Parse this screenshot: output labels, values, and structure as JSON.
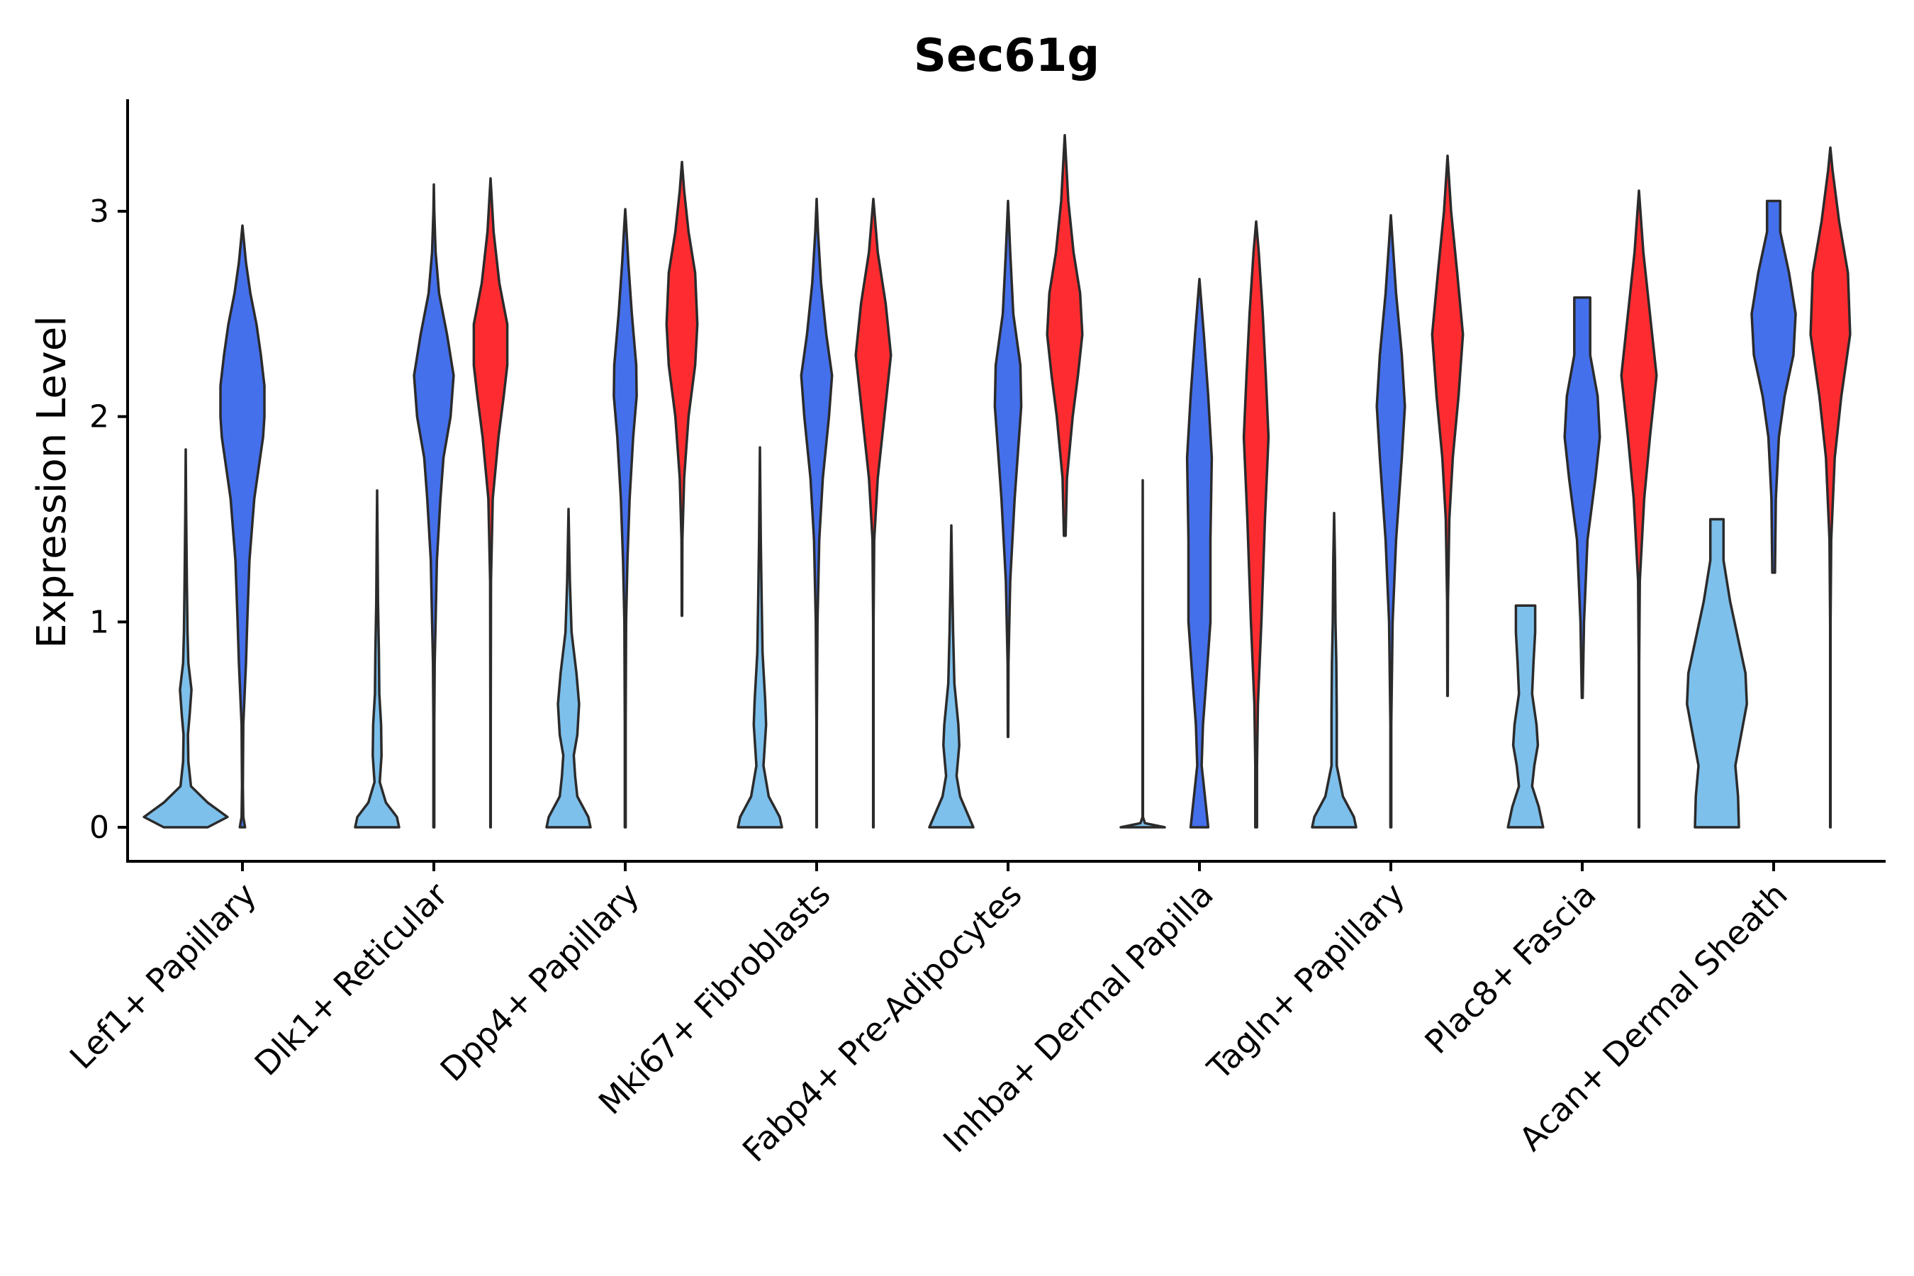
{
  "chart_data": {
    "type": "violin",
    "title": "Sec61g",
    "xlabel": "",
    "ylabel": "Expression Level",
    "ylim": [
      -0.17,
      3.55
    ],
    "yticks": [
      "0",
      "1",
      "2",
      "3"
    ],
    "colors": {
      "group1": "#7dc0ec",
      "group2": "#4570ec",
      "group3": "#fe2c30",
      "outline": "#2b2b2b"
    },
    "categories": [
      "Lef1+ Papillary",
      "Dlk1+ Reticular",
      "Dpp4+ Papillary",
      "Mki67+ Fibroblasts",
      "Fabp4+ Pre-Adipocytes",
      "Inhba+ Dermal Papilla",
      "Tagln+ Papillary",
      "Plac8+ Fascia",
      "Acan+ Dermal Sheath"
    ],
    "violins": [
      {
        "category": 0,
        "group": "group1",
        "min": 0,
        "max": 1.84,
        "profile": [
          [
            0,
            0.5
          ],
          [
            0.05,
            0.95
          ],
          [
            0.12,
            0.5
          ],
          [
            0.2,
            0.12
          ],
          [
            0.32,
            0.06
          ],
          [
            0.45,
            0.05
          ],
          [
            0.55,
            0.09
          ],
          [
            0.67,
            0.13
          ],
          [
            0.8,
            0.06
          ],
          [
            0.95,
            0.04
          ],
          [
            1.2,
            0.025
          ],
          [
            1.5,
            0.012
          ],
          [
            1.84,
            0
          ]
        ]
      },
      {
        "category": 0,
        "group": "group2",
        "min": 0,
        "max": 2.93,
        "profile": [
          [
            0,
            0.06
          ],
          [
            0.05,
            0.02
          ],
          [
            0.2,
            0.01
          ],
          [
            0.5,
            0.02
          ],
          [
            0.8,
            0.08
          ],
          [
            1.0,
            0.11
          ],
          [
            1.3,
            0.16
          ],
          [
            1.6,
            0.27
          ],
          [
            1.9,
            0.47
          ],
          [
            2.0,
            0.5
          ],
          [
            2.15,
            0.5
          ],
          [
            2.3,
            0.42
          ],
          [
            2.45,
            0.32
          ],
          [
            2.6,
            0.18
          ],
          [
            2.75,
            0.08
          ],
          [
            2.93,
            0
          ]
        ]
      },
      {
        "category": 1,
        "group": "group1",
        "min": 0,
        "max": 1.64,
        "profile": [
          [
            0,
            0.5
          ],
          [
            0.05,
            0.45
          ],
          [
            0.12,
            0.2
          ],
          [
            0.22,
            0.06
          ],
          [
            0.35,
            0.1
          ],
          [
            0.5,
            0.09
          ],
          [
            0.65,
            0.05
          ],
          [
            0.85,
            0.04
          ],
          [
            1.1,
            0.02
          ],
          [
            1.4,
            0.01
          ],
          [
            1.64,
            0
          ]
        ]
      },
      {
        "category": 1,
        "group": "group2",
        "min": 0,
        "max": 3.13,
        "profile": [
          [
            0,
            0.01
          ],
          [
            0.5,
            0.01
          ],
          [
            0.8,
            0.02
          ],
          [
            1.0,
            0.04
          ],
          [
            1.3,
            0.07
          ],
          [
            1.6,
            0.15
          ],
          [
            1.8,
            0.22
          ],
          [
            2.0,
            0.38
          ],
          [
            2.2,
            0.45
          ],
          [
            2.4,
            0.3
          ],
          [
            2.6,
            0.12
          ],
          [
            2.8,
            0.04
          ],
          [
            3.0,
            0.01
          ],
          [
            3.13,
            0
          ]
        ]
      },
      {
        "category": 1,
        "group": "group3",
        "min": 0,
        "max": 3.16,
        "profile": [
          [
            0,
            0.005
          ],
          [
            0.5,
            0.005
          ],
          [
            1.2,
            0.01
          ],
          [
            1.6,
            0.05
          ],
          [
            1.9,
            0.18
          ],
          [
            2.1,
            0.3
          ],
          [
            2.25,
            0.38
          ],
          [
            2.45,
            0.38
          ],
          [
            2.65,
            0.2
          ],
          [
            2.9,
            0.07
          ],
          [
            3.16,
            0
          ]
        ]
      },
      {
        "category": 2,
        "group": "group1",
        "min": 0,
        "max": 1.55,
        "profile": [
          [
            0,
            0.5
          ],
          [
            0.05,
            0.45
          ],
          [
            0.15,
            0.2
          ],
          [
            0.25,
            0.15
          ],
          [
            0.35,
            0.12
          ],
          [
            0.45,
            0.2
          ],
          [
            0.6,
            0.24
          ],
          [
            0.75,
            0.18
          ],
          [
            0.95,
            0.07
          ],
          [
            1.2,
            0.03
          ],
          [
            1.55,
            0
          ]
        ]
      },
      {
        "category": 2,
        "group": "group2",
        "min": 0,
        "max": 3.01,
        "profile": [
          [
            0,
            0.01
          ],
          [
            0.5,
            0.01
          ],
          [
            1.0,
            0.02
          ],
          [
            1.3,
            0.05
          ],
          [
            1.6,
            0.1
          ],
          [
            1.9,
            0.18
          ],
          [
            2.1,
            0.26
          ],
          [
            2.25,
            0.25
          ],
          [
            2.5,
            0.15
          ],
          [
            2.75,
            0.07
          ],
          [
            2.9,
            0.03
          ],
          [
            3.01,
            0
          ]
        ]
      },
      {
        "category": 2,
        "group": "group3",
        "min": 1.03,
        "max": 3.24,
        "profile": [
          [
            1.03,
            0.005
          ],
          [
            1.4,
            0.01
          ],
          [
            1.7,
            0.05
          ],
          [
            2.0,
            0.15
          ],
          [
            2.25,
            0.3
          ],
          [
            2.45,
            0.35
          ],
          [
            2.7,
            0.3
          ],
          [
            2.9,
            0.15
          ],
          [
            3.1,
            0.05
          ],
          [
            3.24,
            0
          ]
        ]
      },
      {
        "category": 3,
        "group": "group1",
        "min": 0,
        "max": 1.85,
        "profile": [
          [
            0,
            0.5
          ],
          [
            0.05,
            0.45
          ],
          [
            0.15,
            0.2
          ],
          [
            0.3,
            0.08
          ],
          [
            0.5,
            0.14
          ],
          [
            0.62,
            0.12
          ],
          [
            0.85,
            0.06
          ],
          [
            1.1,
            0.04
          ],
          [
            1.4,
            0.02
          ],
          [
            1.85,
            0
          ]
        ]
      },
      {
        "category": 3,
        "group": "group2",
        "min": 0,
        "max": 3.06,
        "profile": [
          [
            0,
            0.005
          ],
          [
            0.5,
            0.005
          ],
          [
            1.0,
            0.02
          ],
          [
            1.4,
            0.06
          ],
          [
            1.7,
            0.14
          ],
          [
            2.0,
            0.28
          ],
          [
            2.2,
            0.35
          ],
          [
            2.4,
            0.22
          ],
          [
            2.65,
            0.1
          ],
          [
            2.9,
            0.03
          ],
          [
            3.06,
            0
          ]
        ]
      },
      {
        "category": 3,
        "group": "group3",
        "min": 0,
        "max": 3.06,
        "profile": [
          [
            0,
            0.005
          ],
          [
            1.0,
            0.005
          ],
          [
            1.4,
            0.02
          ],
          [
            1.7,
            0.1
          ],
          [
            2.0,
            0.25
          ],
          [
            2.3,
            0.4
          ],
          [
            2.55,
            0.28
          ],
          [
            2.8,
            0.1
          ],
          [
            3.06,
            0
          ]
        ]
      },
      {
        "category": 4,
        "group": "group1",
        "min": 0,
        "max": 1.47,
        "profile": [
          [
            0,
            0.5
          ],
          [
            0.05,
            0.4
          ],
          [
            0.15,
            0.2
          ],
          [
            0.25,
            0.12
          ],
          [
            0.4,
            0.18
          ],
          [
            0.5,
            0.16
          ],
          [
            0.7,
            0.07
          ],
          [
            0.95,
            0.04
          ],
          [
            1.2,
            0.02
          ],
          [
            1.47,
            0
          ]
        ]
      },
      {
        "category": 4,
        "group": "group2",
        "min": 0.44,
        "max": 3.05,
        "profile": [
          [
            0.44,
            0.005
          ],
          [
            0.8,
            0.01
          ],
          [
            1.2,
            0.05
          ],
          [
            1.6,
            0.15
          ],
          [
            1.9,
            0.25
          ],
          [
            2.05,
            0.3
          ],
          [
            2.25,
            0.28
          ],
          [
            2.5,
            0.12
          ],
          [
            2.8,
            0.05
          ],
          [
            3.05,
            0
          ]
        ]
      },
      {
        "category": 4,
        "group": "group3",
        "min": 1.42,
        "max": 3.37,
        "profile": [
          [
            1.42,
            0.02
          ],
          [
            1.7,
            0.05
          ],
          [
            2.0,
            0.18
          ],
          [
            2.2,
            0.3
          ],
          [
            2.4,
            0.4
          ],
          [
            2.6,
            0.35
          ],
          [
            2.8,
            0.2
          ],
          [
            3.05,
            0.08
          ],
          [
            3.37,
            0
          ]
        ]
      },
      {
        "category": 5,
        "group": "group1",
        "min": 0,
        "max": 1.69,
        "profile": [
          [
            0,
            0.5
          ],
          [
            0.02,
            0.05
          ],
          [
            0.05,
            0.005
          ],
          [
            0.5,
            0.005
          ],
          [
            1.69,
            0
          ]
        ]
      },
      {
        "category": 5,
        "group": "group2",
        "min": 0,
        "max": 2.67,
        "profile": [
          [
            0,
            0.2
          ],
          [
            0.1,
            0.15
          ],
          [
            0.3,
            0.05
          ],
          [
            0.5,
            0.08
          ],
          [
            0.7,
            0.15
          ],
          [
            1.0,
            0.25
          ],
          [
            1.4,
            0.25
          ],
          [
            1.8,
            0.28
          ],
          [
            2.1,
            0.2
          ],
          [
            2.4,
            0.1
          ],
          [
            2.67,
            0
          ]
        ]
      },
      {
        "category": 5,
        "group": "group3",
        "min": 0,
        "max": 2.95,
        "profile": [
          [
            0,
            0.02
          ],
          [
            0.3,
            0.02
          ],
          [
            0.6,
            0.04
          ],
          [
            1.0,
            0.12
          ],
          [
            1.5,
            0.2
          ],
          [
            1.9,
            0.28
          ],
          [
            2.2,
            0.22
          ],
          [
            2.5,
            0.15
          ],
          [
            2.8,
            0.06
          ],
          [
            2.95,
            0
          ]
        ]
      },
      {
        "category": 6,
        "group": "group1",
        "min": 0,
        "max": 1.53,
        "profile": [
          [
            0,
            0.5
          ],
          [
            0.05,
            0.45
          ],
          [
            0.15,
            0.2
          ],
          [
            0.3,
            0.06
          ],
          [
            0.55,
            0.06
          ],
          [
            0.8,
            0.05
          ],
          [
            1.0,
            0.03
          ],
          [
            1.3,
            0.02
          ],
          [
            1.53,
            0
          ]
        ]
      },
      {
        "category": 6,
        "group": "group2",
        "min": 0,
        "max": 2.98,
        "profile": [
          [
            0,
            0.01
          ],
          [
            0.5,
            0.01
          ],
          [
            1.0,
            0.04
          ],
          [
            1.4,
            0.12
          ],
          [
            1.8,
            0.25
          ],
          [
            2.05,
            0.32
          ],
          [
            2.3,
            0.25
          ],
          [
            2.6,
            0.12
          ],
          [
            2.85,
            0.04
          ],
          [
            2.98,
            0
          ]
        ]
      },
      {
        "category": 6,
        "group": "group3",
        "min": 0.64,
        "max": 3.27,
        "profile": [
          [
            0.64,
            0.005
          ],
          [
            1.1,
            0.01
          ],
          [
            1.5,
            0.04
          ],
          [
            1.8,
            0.12
          ],
          [
            2.1,
            0.25
          ],
          [
            2.4,
            0.35
          ],
          [
            2.7,
            0.22
          ],
          [
            3.0,
            0.08
          ],
          [
            3.27,
            0
          ]
        ]
      },
      {
        "category": 7,
        "group": "group1",
        "min": 0,
        "max": 1.08,
        "profile": [
          [
            0,
            0.4
          ],
          [
            0.1,
            0.3
          ],
          [
            0.2,
            0.15
          ],
          [
            0.3,
            0.2
          ],
          [
            0.4,
            0.28
          ],
          [
            0.5,
            0.25
          ],
          [
            0.65,
            0.15
          ],
          [
            0.8,
            0.18
          ],
          [
            0.95,
            0.22
          ],
          [
            1.08,
            0.22
          ]
        ]
      },
      {
        "category": 7,
        "group": "group2",
        "min": 0.63,
        "max": 2.58,
        "profile": [
          [
            0.63,
            0.01
          ],
          [
            1.0,
            0.04
          ],
          [
            1.4,
            0.12
          ],
          [
            1.7,
            0.3
          ],
          [
            1.9,
            0.4
          ],
          [
            2.1,
            0.35
          ],
          [
            2.3,
            0.18
          ],
          [
            2.45,
            0.18
          ],
          [
            2.58,
            0.18
          ]
        ]
      },
      {
        "category": 7,
        "group": "group3",
        "min": 0,
        "max": 3.1,
        "profile": [
          [
            0,
            0.005
          ],
          [
            0.8,
            0.005
          ],
          [
            1.2,
            0.02
          ],
          [
            1.6,
            0.12
          ],
          [
            1.9,
            0.25
          ],
          [
            2.2,
            0.4
          ],
          [
            2.5,
            0.25
          ],
          [
            2.8,
            0.1
          ],
          [
            3.1,
            0
          ]
        ]
      },
      {
        "category": 8,
        "group": "group1",
        "min": 0,
        "max": 1.5,
        "profile": [
          [
            0,
            0.5
          ],
          [
            0.15,
            0.48
          ],
          [
            0.3,
            0.42
          ],
          [
            0.45,
            0.55
          ],
          [
            0.6,
            0.68
          ],
          [
            0.75,
            0.65
          ],
          [
            0.9,
            0.5
          ],
          [
            1.1,
            0.3
          ],
          [
            1.3,
            0.15
          ],
          [
            1.5,
            0.15
          ]
        ]
      },
      {
        "category": 8,
        "group": "group2",
        "min": 1.24,
        "max": 3.05,
        "profile": [
          [
            1.24,
            0.03
          ],
          [
            1.6,
            0.05
          ],
          [
            1.9,
            0.12
          ],
          [
            2.1,
            0.25
          ],
          [
            2.3,
            0.45
          ],
          [
            2.5,
            0.5
          ],
          [
            2.7,
            0.35
          ],
          [
            2.9,
            0.15
          ],
          [
            3.05,
            0.15
          ]
        ]
      },
      {
        "category": 8,
        "group": "group3",
        "min": 0,
        "max": 3.31,
        "profile": [
          [
            0,
            0.005
          ],
          [
            1.0,
            0.005
          ],
          [
            1.4,
            0.02
          ],
          [
            1.8,
            0.1
          ],
          [
            2.1,
            0.25
          ],
          [
            2.4,
            0.45
          ],
          [
            2.7,
            0.4
          ],
          [
            2.95,
            0.2
          ],
          [
            3.2,
            0.05
          ],
          [
            3.31,
            0
          ]
        ]
      }
    ]
  }
}
